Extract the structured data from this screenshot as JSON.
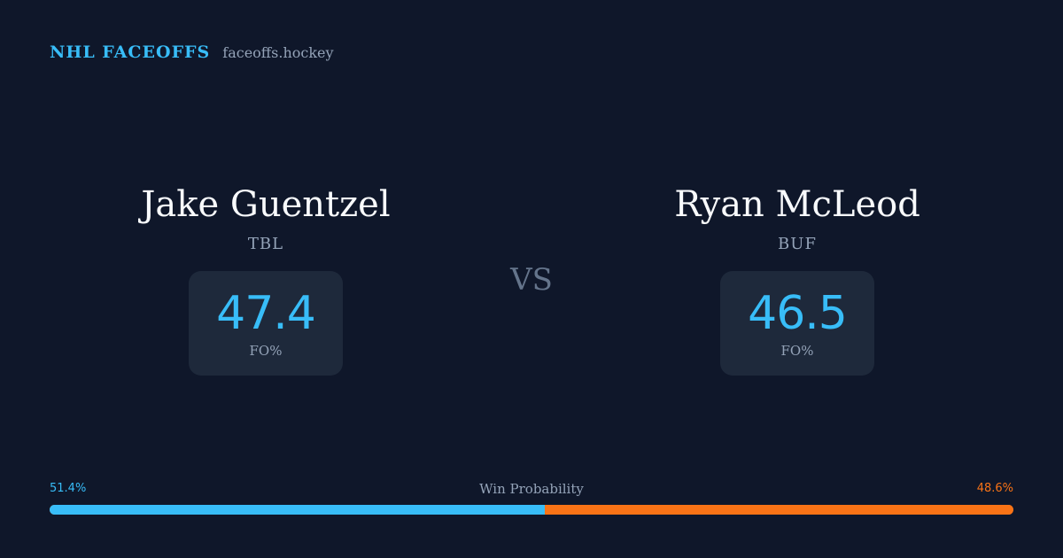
{
  "header": {
    "brand": "NHL FACEOFFS",
    "domain": "faceoffs.hockey"
  },
  "players": [
    {
      "name": "Jake Guentzel",
      "team": "TBL",
      "stat_value": "47.4",
      "stat_label": "FO%"
    },
    {
      "name": "Ryan McLeod",
      "team": "BUF",
      "stat_value": "46.5",
      "stat_label": "FO%"
    }
  ],
  "vs_label": "VS",
  "win_probability": {
    "title": "Win Probability",
    "left_label": "51.4%",
    "right_label": "48.6%",
    "left_value": 51.4,
    "right_value": 48.6,
    "left_color": "#38bdf8",
    "right_color": "#f97316"
  }
}
